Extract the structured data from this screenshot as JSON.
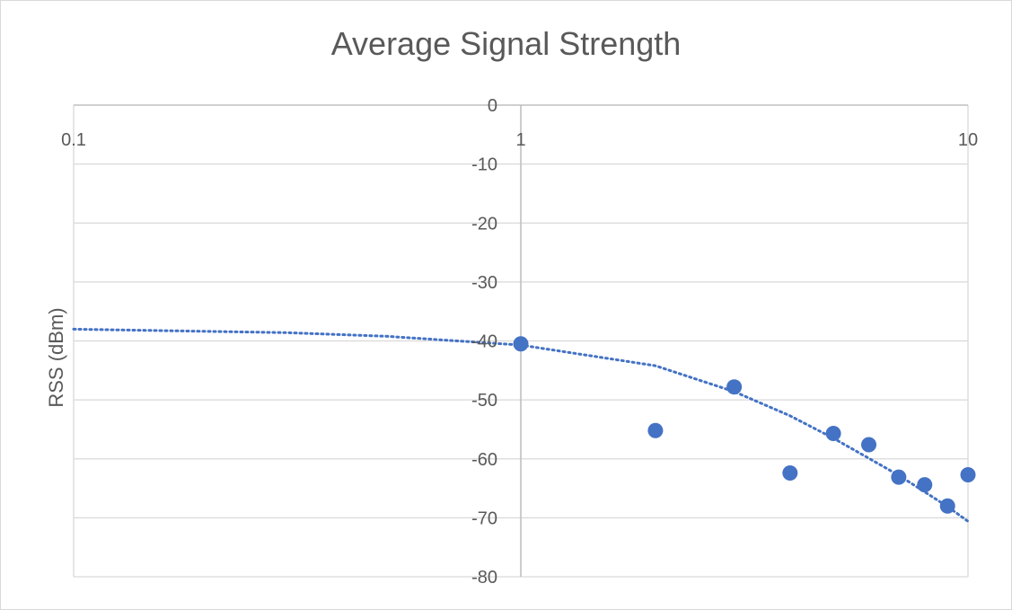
{
  "chart_data": {
    "type": "scatter",
    "title": "Average Signal Strength",
    "xlabel": "",
    "ylabel": "RSS (dBm)",
    "x_scale": "log",
    "xlim": [
      0.1,
      10
    ],
    "ylim": [
      -80,
      0
    ],
    "x_ticks": [
      "0.1",
      "1",
      "10"
    ],
    "y_ticks": [
      "0",
      "-10",
      "-20",
      "-30",
      "-40",
      "-50",
      "-60",
      "-70",
      "-80"
    ],
    "grid": true,
    "legend": "none",
    "series": [
      {
        "marker_color": "#4472c4",
        "points": [
          {
            "x": 1,
            "y": -40.5
          },
          {
            "x": 2,
            "y": -55.2
          },
          {
            "x": 3,
            "y": -47.8
          },
          {
            "x": 4,
            "y": -62.4
          },
          {
            "x": 5,
            "y": -55.7
          },
          {
            "x": 6,
            "y": -57.6
          },
          {
            "x": 7,
            "y": -63.1
          },
          {
            "x": 8,
            "y": -64.4
          },
          {
            "x": 9,
            "y": -68.0
          },
          {
            "x": 10,
            "y": -62.7
          }
        ]
      }
    ],
    "trendline": {
      "style": "dotted",
      "color": "#4472c4",
      "points": [
        {
          "x": 0.1,
          "y": -38.0
        },
        {
          "x": 0.3,
          "y": -38.6
        },
        {
          "x": 0.5,
          "y": -39.2
        },
        {
          "x": 1,
          "y": -40.7
        },
        {
          "x": 2,
          "y": -44.2
        },
        {
          "x": 3,
          "y": -48.6
        },
        {
          "x": 4,
          "y": -52.7
        },
        {
          "x": 5,
          "y": -56.5
        },
        {
          "x": 6,
          "y": -59.9
        },
        {
          "x": 7,
          "y": -62.8
        },
        {
          "x": 8,
          "y": -65.6
        },
        {
          "x": 9,
          "y": -68.1
        },
        {
          "x": 10,
          "y": -70.6
        }
      ]
    }
  }
}
